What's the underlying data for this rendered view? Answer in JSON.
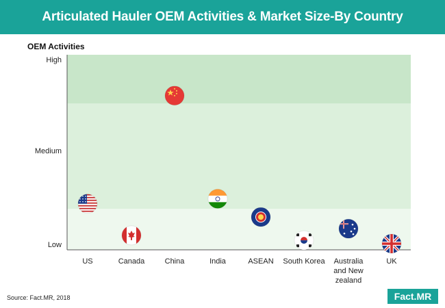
{
  "header": {
    "title": "Articulated Hauler OEM Activities & Market Size-By Country"
  },
  "source": "Source: Fact.MR, 2018",
  "logo": "Fact.MR",
  "colors": {
    "header_bg": "#1aa399",
    "band_high": "#c8e6c9",
    "band_medium": "#dcf0dc",
    "band_low": "#eef8ee"
  },
  "chart_data": {
    "type": "scatter",
    "title": "Articulated Hauler OEM Activities & Market Size-By Country",
    "ylabel": "OEM Activities",
    "xlabel": "",
    "yticks": [
      "Low",
      "Medium",
      "High"
    ],
    "ylim": [
      0,
      1
    ],
    "bands": [
      {
        "level": "Low",
        "from": 0,
        "to": 0.21
      },
      {
        "level": "Medium",
        "from": 0.21,
        "to": 0.75
      },
      {
        "level": "High",
        "from": 0.75,
        "to": 1
      }
    ],
    "categories": [
      "US",
      "Canada",
      "China",
      "India",
      "ASEAN",
      "South Korea",
      "Australia and New zealand",
      "UK"
    ],
    "points": [
      {
        "country": "US",
        "y": 0.24,
        "flag": "flag-us"
      },
      {
        "country": "Canada",
        "y": 0.05,
        "flag": "flag-canada"
      },
      {
        "country": "China",
        "y": 0.89,
        "flag": "flag-china"
      },
      {
        "country": "India",
        "y": 0.27,
        "flag": "flag-india"
      },
      {
        "country": "ASEAN",
        "y": 0.16,
        "flag": "flag-asean"
      },
      {
        "country": "South Korea",
        "y": 0.02,
        "flag": "flag-south-korea"
      },
      {
        "country": "Australia and New zealand",
        "y": 0.09,
        "flag": "flag-australia"
      },
      {
        "country": "UK",
        "y": 0.0,
        "flag": "flag-uk"
      }
    ],
    "grid": false
  }
}
